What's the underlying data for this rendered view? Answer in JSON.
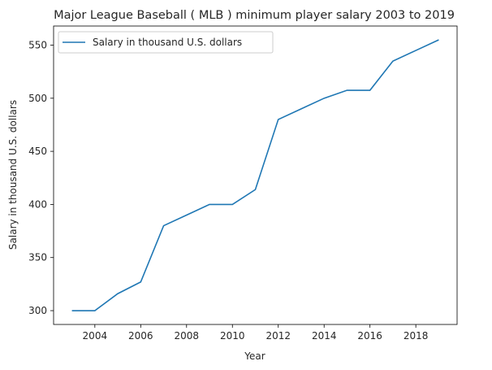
{
  "chart_data": {
    "type": "line",
    "title": "Major League Baseball ( MLB ) minimum player salary 2003 to 2019",
    "xlabel": "Year",
    "ylabel": "Salary in thousand U.S. dollars",
    "x": [
      2003,
      2004,
      2005,
      2006,
      2007,
      2008,
      2009,
      2010,
      2011,
      2012,
      2013,
      2014,
      2015,
      2016,
      2017,
      2018,
      2019
    ],
    "series": [
      {
        "name": "Salary in thousand U.S. dollars",
        "values": [
          300,
          300,
          316,
          327,
          380,
          390,
          400,
          400,
          414,
          480,
          490,
          500,
          507.5,
          507.5,
          535,
          545,
          555
        ],
        "color": "#1f77b4"
      }
    ],
    "xlim": [
      2002.2,
      2019.8
    ],
    "ylim": [
      287,
      568
    ],
    "xticks": [
      "2004",
      "2006",
      "2008",
      "2010",
      "2012",
      "2014",
      "2016",
      "2018"
    ],
    "yticks": [
      "300",
      "350",
      "400",
      "450",
      "500",
      "550"
    ],
    "grid": false,
    "legend_position": "top-left"
  }
}
